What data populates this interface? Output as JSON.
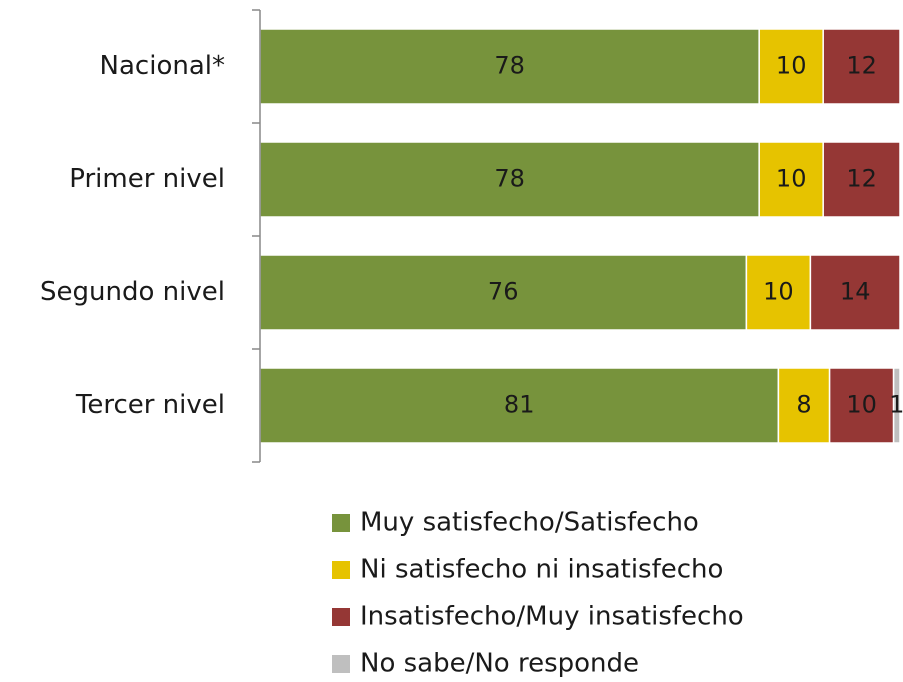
{
  "chart_data": {
    "type": "stacked-bar-horizontal",
    "categories": [
      "Nacional*",
      "Primer nivel",
      "Segundo nivel",
      "Tercer nivel"
    ],
    "series": [
      {
        "name": "Muy satisfecho/Satisfecho",
        "color": "#77933c",
        "values": [
          78,
          78,
          76,
          81
        ]
      },
      {
        "name": "Ni satisfecho ni insatisfecho",
        "color": "#e6c300",
        "values": [
          10,
          10,
          10,
          8
        ]
      },
      {
        "name": "Insatisfecho/Muy insatisfecho",
        "color": "#953735",
        "values": [
          12,
          12,
          14,
          10
        ]
      },
      {
        "name": "No sabe/No responde",
        "color": "#bfbfbf",
        "values": [
          0,
          0,
          0,
          1
        ]
      }
    ],
    "xlim": [
      0,
      100
    ],
    "legend": "bottom"
  }
}
